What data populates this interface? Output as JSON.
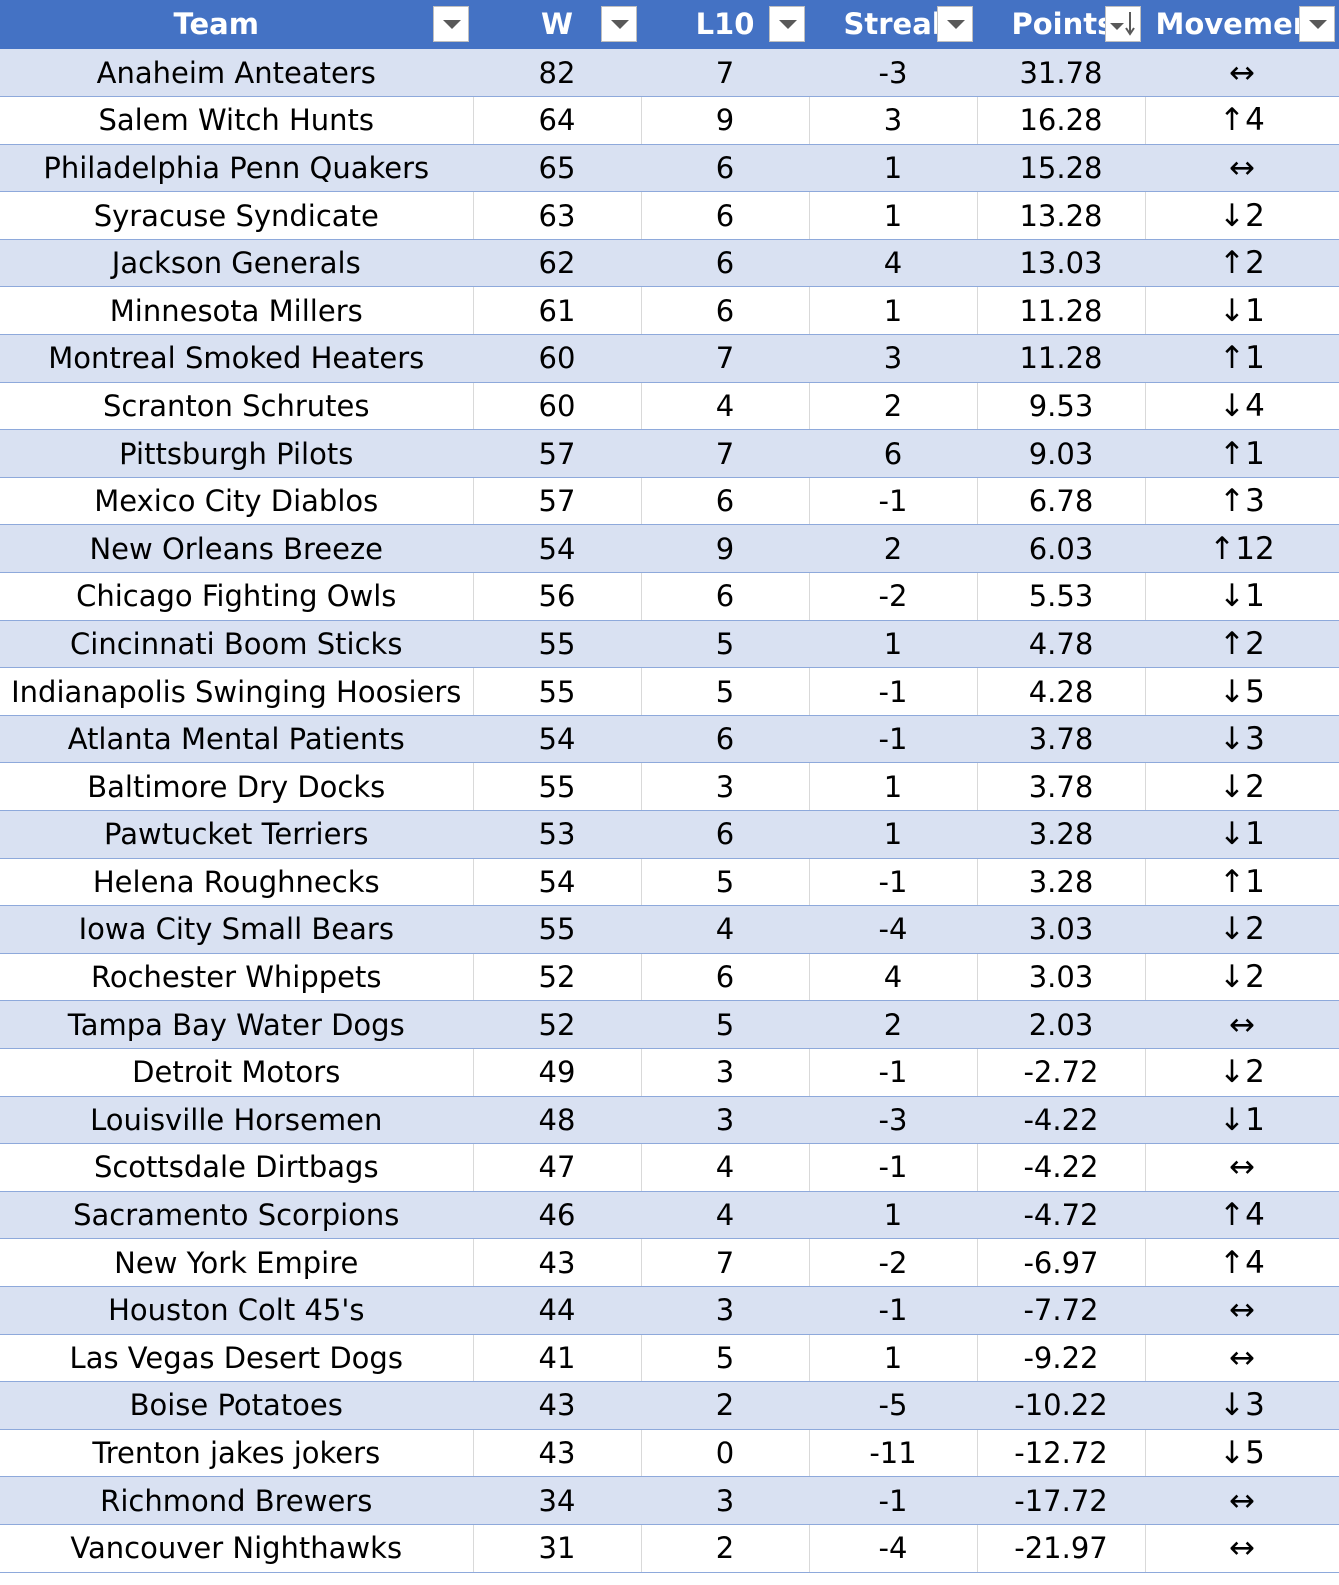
{
  "headers": {
    "team": "Team",
    "w": "W",
    "l10": "L10",
    "streak": "Streak",
    "points": "Points",
    "movement": "Movement"
  },
  "icons": {
    "filter": "filter-dropdown-icon",
    "sort": "sort-descending-icon"
  },
  "colors": {
    "header_bg": "#4472c4",
    "band_bg": "#d9e1f2",
    "row_border": "#8ea9db"
  },
  "rows": [
    {
      "team": "Anaheim Anteaters",
      "w": "82",
      "l10": "7",
      "streak": "-3",
      "points": "31.78",
      "movement": "↔"
    },
    {
      "team": "Salem Witch Hunts",
      "w": "64",
      "l10": "9",
      "streak": "3",
      "points": "16.28",
      "movement": "↑4"
    },
    {
      "team": "Philadelphia Penn Quakers",
      "w": "65",
      "l10": "6",
      "streak": "1",
      "points": "15.28",
      "movement": "↔"
    },
    {
      "team": "Syracuse Syndicate",
      "w": "63",
      "l10": "6",
      "streak": "1",
      "points": "13.28",
      "movement": "↓2"
    },
    {
      "team": "Jackson Generals",
      "w": "62",
      "l10": "6",
      "streak": "4",
      "points": "13.03",
      "movement": "↑2"
    },
    {
      "team": "Minnesota Millers",
      "w": "61",
      "l10": "6",
      "streak": "1",
      "points": "11.28",
      "movement": "↓1"
    },
    {
      "team": "Montreal Smoked Heaters",
      "w": "60",
      "l10": "7",
      "streak": "3",
      "points": "11.28",
      "movement": "↑1"
    },
    {
      "team": "Scranton Schrutes",
      "w": "60",
      "l10": "4",
      "streak": "2",
      "points": "9.53",
      "movement": "↓4"
    },
    {
      "team": "Pittsburgh Pilots",
      "w": "57",
      "l10": "7",
      "streak": "6",
      "points": "9.03",
      "movement": "↑1"
    },
    {
      "team": "Mexico City Diablos",
      "w": "57",
      "l10": "6",
      "streak": "-1",
      "points": "6.78",
      "movement": "↑3"
    },
    {
      "team": "New Orleans Breeze",
      "w": "54",
      "l10": "9",
      "streak": "2",
      "points": "6.03",
      "movement": "↑12"
    },
    {
      "team": "Chicago Fighting Owls",
      "w": "56",
      "l10": "6",
      "streak": "-2",
      "points": "5.53",
      "movement": "↓1"
    },
    {
      "team": "Cincinnati Boom Sticks",
      "w": "55",
      "l10": "5",
      "streak": "1",
      "points": "4.78",
      "movement": "↑2"
    },
    {
      "team": "Indianapolis Swinging Hoosiers",
      "w": "55",
      "l10": "5",
      "streak": "-1",
      "points": "4.28",
      "movement": "↓5"
    },
    {
      "team": "Atlanta Mental Patients",
      "w": "54",
      "l10": "6",
      "streak": "-1",
      "points": "3.78",
      "movement": "↓3"
    },
    {
      "team": "Baltimore Dry Docks",
      "w": "55",
      "l10": "3",
      "streak": "1",
      "points": "3.78",
      "movement": "↓2"
    },
    {
      "team": "Pawtucket Terriers",
      "w": "53",
      "l10": "6",
      "streak": "1",
      "points": "3.28",
      "movement": "↓1"
    },
    {
      "team": "Helena Roughnecks",
      "w": "54",
      "l10": "5",
      "streak": "-1",
      "points": "3.28",
      "movement": "↑1"
    },
    {
      "team": "Iowa City Small Bears",
      "w": "55",
      "l10": "4",
      "streak": "-4",
      "points": "3.03",
      "movement": "↓2"
    },
    {
      "team": "Rochester Whippets",
      "w": "52",
      "l10": "6",
      "streak": "4",
      "points": "3.03",
      "movement": "↓2"
    },
    {
      "team": "Tampa Bay Water Dogs",
      "w": "52",
      "l10": "5",
      "streak": "2",
      "points": "2.03",
      "movement": "↔"
    },
    {
      "team": "Detroit Motors",
      "w": "49",
      "l10": "3",
      "streak": "-1",
      "points": "-2.72",
      "movement": "↓2"
    },
    {
      "team": "Louisville Horsemen",
      "w": "48",
      "l10": "3",
      "streak": "-3",
      "points": "-4.22",
      "movement": "↓1"
    },
    {
      "team": "Scottsdale Dirtbags",
      "w": "47",
      "l10": "4",
      "streak": "-1",
      "points": "-4.22",
      "movement": "↔"
    },
    {
      "team": "Sacramento Scorpions",
      "w": "46",
      "l10": "4",
      "streak": "1",
      "points": "-4.72",
      "movement": "↑4"
    },
    {
      "team": "New York Empire",
      "w": "43",
      "l10": "7",
      "streak": "-2",
      "points": "-6.97",
      "movement": "↑4"
    },
    {
      "team": "Houston Colt 45's",
      "w": "44",
      "l10": "3",
      "streak": "-1",
      "points": "-7.72",
      "movement": "↔"
    },
    {
      "team": "Las Vegas Desert Dogs",
      "w": "41",
      "l10": "5",
      "streak": "1",
      "points": "-9.22",
      "movement": "↔"
    },
    {
      "team": "Boise Potatoes",
      "w": "43",
      "l10": "2",
      "streak": "-5",
      "points": "-10.22",
      "movement": "↓3"
    },
    {
      "team": "Trenton jakes jokers",
      "w": "43",
      "l10": "0",
      "streak": "-11",
      "points": "-12.72",
      "movement": "↓5"
    },
    {
      "team": "Richmond Brewers",
      "w": "34",
      "l10": "3",
      "streak": "-1",
      "points": "-17.72",
      "movement": "↔"
    },
    {
      "team": "Vancouver Nighthawks",
      "w": "31",
      "l10": "2",
      "streak": "-4",
      "points": "-21.97",
      "movement": "↔"
    }
  ]
}
